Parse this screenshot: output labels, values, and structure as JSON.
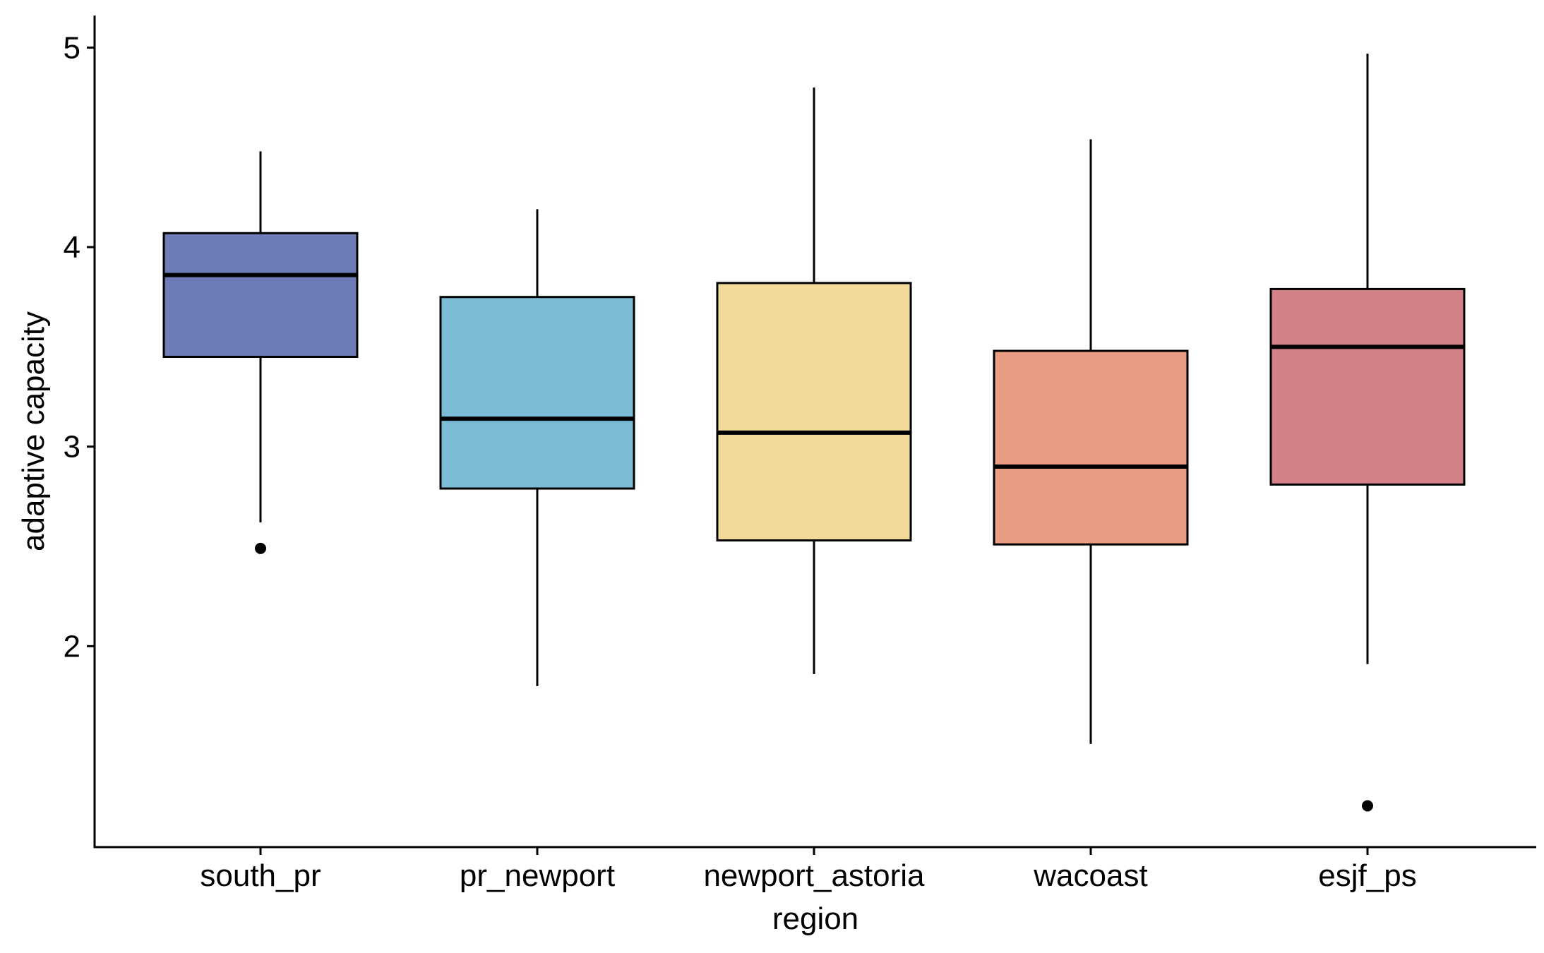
{
  "chart_data": {
    "type": "boxplot",
    "xlabel": "region",
    "ylabel": "adaptive capacity",
    "ylim": [
      1.0,
      5.15
    ],
    "yticks": [
      "2",
      "3",
      "4",
      "5"
    ],
    "grid": false,
    "legend": "none",
    "categories": [
      "south_pr",
      "pr_newport",
      "newport_astoria",
      "wacoast",
      "esjf_ps"
    ],
    "boxes": [
      {
        "category": "south_pr",
        "color": "#6E7DB8",
        "whisker_low": 2.62,
        "q1": 3.45,
        "median": 3.86,
        "q3": 4.07,
        "whisker_high": 4.48,
        "outliers": [
          2.49
        ]
      },
      {
        "category": "pr_newport",
        "color": "#7CBBD5",
        "whisker_low": 1.8,
        "q1": 2.79,
        "median": 3.14,
        "q3": 3.75,
        "whisker_high": 4.19,
        "outliers": []
      },
      {
        "category": "newport_astoria",
        "color": "#F3DA9A",
        "whisker_low": 1.86,
        "q1": 2.53,
        "median": 3.07,
        "q3": 3.82,
        "whisker_high": 4.8,
        "outliers": []
      },
      {
        "category": "wacoast",
        "color": "#E89D83",
        "whisker_low": 1.51,
        "q1": 2.51,
        "median": 2.9,
        "q3": 3.48,
        "whisker_high": 4.54,
        "outliers": []
      },
      {
        "category": "esjf_ps",
        "color": "#D28188",
        "whisker_low": 1.91,
        "q1": 2.81,
        "median": 3.5,
        "q3": 3.79,
        "whisker_high": 4.97,
        "outliers": [
          1.2
        ]
      }
    ]
  }
}
